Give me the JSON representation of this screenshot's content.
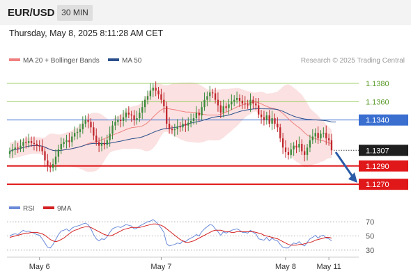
{
  "header": {
    "symbol": "EUR/USD",
    "timeframe": "30 MIN",
    "datetime": "Thursday, May 8, 2025 8:11:28 AM CET"
  },
  "legend": {
    "ma20_label": "MA 20 + Bollinger Bands",
    "ma50_label": "MA 50",
    "copyright": "Research © 2025 Trading Central",
    "rsi_label": "RSI",
    "rsi_ma_label": "9MA"
  },
  "colors": {
    "candle_up": "#3a8a3a",
    "candle_down": "#c0272d",
    "bollinger_fill": "#fbe1e1",
    "ma20": "#f08080",
    "ma50": "#2b4f8c",
    "resistance_green": "#9acd62",
    "pivot_blue": "#3a6fd0",
    "support_red": "#e0181a",
    "current_price_box": "#1f1f1f",
    "arrow": "#2a5aa7",
    "rsi_line": "#6a8ad8",
    "rsi_ma_line": "#d32020"
  },
  "chart_data": {
    "type": "candlestick",
    "symbol": "EUR/USD",
    "interval": "30 MIN",
    "ylim": [
      1.1255,
      1.1395
    ],
    "levels": [
      {
        "value": 1.138,
        "label": "1.1380",
        "kind": "resistance"
      },
      {
        "value": 1.136,
        "label": "1.1360",
        "kind": "resistance"
      },
      {
        "value": 1.134,
        "label": "1.1340",
        "kind": "pivot"
      },
      {
        "value": 1.1307,
        "label": "1.1307",
        "kind": "current"
      },
      {
        "value": 1.129,
        "label": "1.1290",
        "kind": "support"
      },
      {
        "value": 1.127,
        "label": "1.1270",
        "kind": "support"
      }
    ],
    "x_ticks": [
      {
        "i": 11,
        "label": "May 6"
      },
      {
        "i": 56,
        "label": "May 7"
      },
      {
        "i": 102,
        "label": "May 8"
      },
      {
        "i": 118,
        "label": "May 11"
      }
    ],
    "closes": [
      1.1306,
      1.1308,
      1.131,
      1.1309,
      1.1312,
      1.1316,
      1.1315,
      1.1317,
      1.1315,
      1.1314,
      1.1312,
      1.1311,
      1.1306,
      1.1296,
      1.129,
      1.1288,
      1.1292,
      1.13,
      1.1308,
      1.1314,
      1.1316,
      1.1318,
      1.1316,
      1.1322,
      1.1326,
      1.1327,
      1.133,
      1.1336,
      1.134,
      1.1338,
      1.1332,
      1.1323,
      1.1316,
      1.1312,
      1.1315,
      1.1313,
      1.1318,
      1.1325,
      1.1334,
      1.1338,
      1.134,
      1.1339,
      1.1343,
      1.1348,
      1.1346,
      1.1345,
      1.134,
      1.1342,
      1.1348,
      1.1354,
      1.1362,
      1.1366,
      1.1372,
      1.1375,
      1.1372,
      1.1368,
      1.1362,
      1.1355,
      1.1336,
      1.133,
      1.1329,
      1.133,
      1.1333,
      1.1332,
      1.1336,
      1.1334,
      1.1337,
      1.1339,
      1.1342,
      1.1348,
      1.1345,
      1.1354,
      1.1362,
      1.1366,
      1.137,
      1.1369,
      1.1362,
      1.1356,
      1.1348,
      1.1355,
      1.1353,
      1.1357,
      1.136,
      1.1362,
      1.1364,
      1.1361,
      1.1358,
      1.1357,
      1.1356,
      1.1362,
      1.1358,
      1.1356,
      1.1346,
      1.1343,
      1.134,
      1.1345,
      1.1336,
      1.1342,
      1.1336,
      1.1332,
      1.132,
      1.131,
      1.1305,
      1.1302,
      1.1308,
      1.1312,
      1.131,
      1.1314,
      1.1306,
      1.1302,
      1.131,
      1.1318,
      1.1322,
      1.1326,
      1.132,
      1.1325,
      1.1326,
      1.132,
      1.1318,
      1.1307
    ],
    "rsi_ylim": [
      25,
      75
    ],
    "rsi_levels": [
      70,
      50,
      30
    ],
    "rsi": [
      50,
      52,
      53,
      52,
      55,
      58,
      56,
      57,
      55,
      54,
      52,
      51,
      46,
      40,
      34,
      33,
      38,
      45,
      52,
      57,
      58,
      60,
      57,
      61,
      63,
      64,
      65,
      67,
      68,
      66,
      60,
      52,
      46,
      43,
      46,
      45,
      49,
      55,
      60,
      62,
      63,
      62,
      64,
      66,
      65,
      64,
      60,
      61,
      64,
      66,
      68,
      70,
      71,
      73,
      70,
      66,
      61,
      55,
      39,
      36,
      37,
      38,
      40,
      39,
      43,
      42,
      45,
      47,
      49,
      52,
      50,
      56,
      60,
      63,
      66,
      65,
      60,
      56,
      51,
      56,
      54,
      56,
      58,
      59,
      60,
      58,
      55,
      55,
      54,
      58,
      55,
      53,
      46,
      45,
      44,
      48,
      43,
      47,
      44,
      43,
      38,
      34,
      33,
      33,
      37,
      40,
      39,
      42,
      38,
      36,
      41,
      46,
      48,
      51,
      47,
      50,
      51,
      47,
      46,
      43
    ],
    "rsi_ma": [
      48,
      49,
      50,
      51,
      52,
      53,
      54,
      54,
      55,
      55,
      55,
      54,
      53,
      51,
      48,
      45,
      43,
      42,
      43,
      45,
      47,
      50,
      53,
      56,
      58,
      59,
      61,
      62,
      63,
      63,
      62,
      60,
      58,
      56,
      54,
      52,
      51,
      50,
      51,
      53,
      55,
      57,
      59,
      60,
      61,
      62,
      62,
      62,
      62,
      63,
      64,
      65,
      66,
      67,
      67,
      66,
      65,
      63,
      60,
      57,
      54,
      51,
      48,
      45,
      43,
      41,
      41,
      42,
      43,
      45,
      47,
      49,
      51,
      53,
      55,
      57,
      58,
      58,
      58,
      57,
      56,
      56,
      55,
      55,
      56,
      56,
      56,
      56,
      56,
      56,
      56,
      55,
      54,
      53,
      51,
      50,
      49,
      48,
      47,
      46,
      44,
      42,
      40,
      38,
      37,
      37,
      37,
      38,
      38,
      39,
      40,
      41,
      42,
      44,
      45,
      46,
      47,
      48,
      48,
      47
    ]
  }
}
